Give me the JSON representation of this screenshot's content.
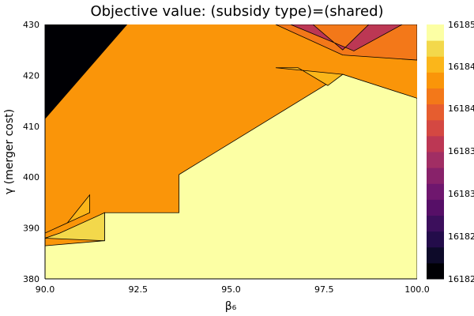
{
  "chart_data": {
    "type": "contour",
    "title": "Objective value: (subsidy type)=(shared)",
    "xlabel": "β₆",
    "ylabel": "γ (merger cost)",
    "xlim": [
      90.0,
      100.0
    ],
    "ylim": [
      380,
      430
    ],
    "xticks": [
      "90.0",
      "92.5",
      "95.0",
      "97.5",
      "100.0"
    ],
    "xtick_values": [
      90.0,
      92.5,
      95.0,
      97.5,
      100.0
    ],
    "yticks": [
      "380",
      "390",
      "400",
      "410",
      "420",
      "430"
    ],
    "ytick_values": [
      380,
      390,
      400,
      410,
      420,
      430
    ],
    "colorbar_ticks": [
      "16182",
      "16182",
      "16183",
      "16183",
      "16184",
      "16184",
      "16185"
    ],
    "colorscale": "inferno",
    "level_colors": [
      "#000004",
      "#0d0a29",
      "#230c4a",
      "#3c0f5c",
      "#560f67",
      "#6f176e",
      "#88226a",
      "#a12e64",
      "#bc3754",
      "#d44842",
      "#e65d2f",
      "#f37819",
      "#fa9509",
      "#fbb61a",
      "#f3d84b",
      "#fcffa4"
    ],
    "regions": [
      {
        "level": 12,
        "x": [
          90.0,
          100.0,
          100.0,
          90.0
        ],
        "y": [
          380,
          380,
          430,
          430
        ]
      },
      {
        "level": 0,
        "x": [
          90.0,
          92.2,
          90.0
        ],
        "y": [
          430,
          430,
          411.5
        ]
      },
      {
        "level": 15,
        "x": [
          90.0,
          90.0,
          91.6,
          91.6,
          93.6,
          93.6,
          98.0,
          100.0,
          100.0
        ],
        "y": [
          380,
          386.5,
          387.5,
          393,
          393,
          400.5,
          420.2,
          415.5,
          380
        ]
      },
      {
        "level": 14,
        "x": [
          90.0,
          90.4,
          91.6,
          91.6
        ],
        "y": [
          388,
          389,
          393,
          387.5
        ]
      },
      {
        "level": 13,
        "x": [
          90.0,
          90.6,
          91.2,
          91.2
        ],
        "y": [
          389,
          391,
          396.5,
          393
        ]
      },
      {
        "level": 13,
        "x": [
          96.2,
          96.8,
          97.6,
          98.0
        ],
        "y": [
          421.5,
          421.5,
          418,
          420.2
        ]
      },
      {
        "level": 11,
        "x": [
          96.2,
          100.0,
          100.0,
          98.0
        ],
        "y": [
          430,
          430,
          423,
          424
        ]
      },
      {
        "level": 8,
        "x": [
          96.6,
          97.2,
          98.0,
          98.7,
          99.6,
          98.3
        ],
        "y": [
          430,
          430,
          425,
          430,
          430,
          424.8
        ]
      }
    ]
  }
}
